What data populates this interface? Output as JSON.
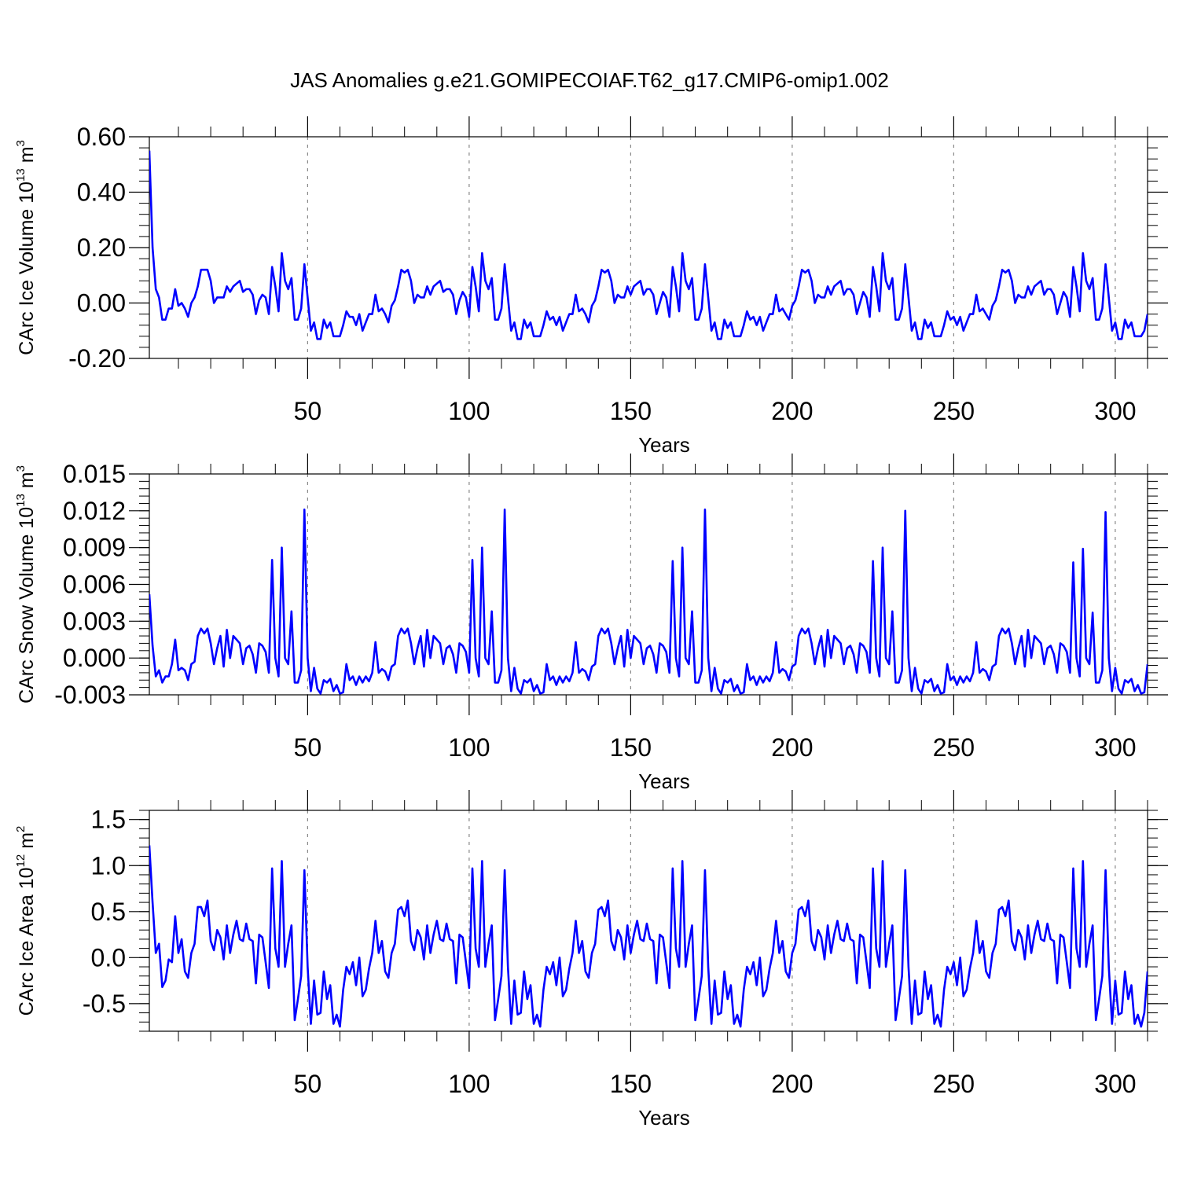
{
  "title": "JAS Anomalies g.e21.GOMIPECOIAF.T62_g17.CMIP6-omip1.002",
  "colors": {
    "line": "#0000ff",
    "axis": "#000000",
    "grid": "#888888"
  },
  "chart_data": [
    {
      "type": "line",
      "ylabel": {
        "text": "CArc Ice Volume 10",
        "exp": "13",
        "unit": " m",
        "unit_exp": "3"
      },
      "xlabel": "Years",
      "xlim": [
        1,
        310
      ],
      "ylim": [
        -0.2,
        0.6
      ],
      "xticks": [
        50,
        100,
        150,
        200,
        250,
        300
      ],
      "yticks": [
        "-0.20",
        "0.00",
        "0.20",
        "0.40",
        "0.60"
      ],
      "grid": "vertical dashed lines at x ticks",
      "series": [
        {
          "values": [
            0.55,
            0.2,
            0.05,
            0.02,
            -0.06,
            -0.06,
            -0.02,
            -0.02,
            0.05,
            -0.01,
            0.0,
            -0.02,
            -0.05,
            0.0,
            0.02,
            0.06,
            0.12,
            0.12,
            0.12,
            0.08,
            0.0,
            0.02,
            0.02,
            0.02,
            0.06,
            0.04,
            0.06,
            0.07,
            0.08,
            0.04,
            0.05,
            0.05,
            0.03,
            -0.04,
            0.01,
            0.03,
            0.02,
            -0.04,
            0.13,
            0.06,
            -0.03,
            0.18,
            0.08,
            0.05,
            0.09,
            -0.06,
            -0.06,
            -0.02,
            0.14,
            0.02,
            -0.1,
            -0.07,
            -0.13,
            -0.13,
            -0.06,
            -0.09,
            -0.07,
            -0.12,
            -0.12,
            -0.12,
            -0.08,
            -0.03,
            -0.05,
            -0.05,
            -0.08,
            -0.04,
            -0.1,
            -0.07,
            -0.04,
            -0.04,
            0.03,
            -0.03,
            -0.02,
            -0.04,
            -0.07,
            -0.01,
            0.01,
            0.06,
            0.12,
            0.11,
            0.12,
            0.08,
            0.0,
            0.03,
            0.02,
            0.02,
            0.06,
            0.03,
            0.06,
            0.07,
            0.08,
            0.04,
            0.05,
            0.05,
            0.03,
            -0.04,
            0.01,
            0.04,
            0.02,
            -0.05,
            0.13,
            0.06,
            -0.03,
            0.18,
            0.08,
            0.05,
            0.09,
            -0.06,
            -0.06,
            -0.02,
            0.14,
            0.02,
            -0.1,
            -0.07,
            -0.13,
            -0.13,
            -0.06,
            -0.09,
            -0.07,
            -0.12,
            -0.12,
            -0.12,
            -0.08,
            -0.03,
            -0.06,
            -0.05,
            -0.08,
            -0.05,
            -0.1,
            -0.07,
            -0.04,
            -0.04,
            0.03,
            -0.03,
            -0.02,
            -0.04,
            -0.07,
            -0.01,
            0.01,
            0.06,
            0.12,
            0.11,
            0.12,
            0.08,
            0.0,
            0.03,
            0.02,
            0.02,
            0.06,
            0.03,
            0.06,
            0.07,
            0.08,
            0.03,
            0.05,
            0.05,
            0.03,
            -0.04,
            0.0,
            0.04,
            0.02,
            -0.05,
            0.13,
            0.06,
            -0.03,
            0.18,
            0.08,
            0.05,
            0.09,
            -0.06,
            -0.06,
            -0.02,
            0.14,
            0.02,
            -0.1,
            -0.07,
            -0.13,
            -0.13,
            -0.06,
            -0.09,
            -0.07,
            -0.12,
            -0.12,
            -0.12,
            -0.08,
            -0.03,
            -0.06,
            -0.05,
            -0.08,
            -0.05,
            -0.1,
            -0.07,
            -0.04,
            -0.04,
            0.03,
            -0.03,
            -0.02,
            -0.04,
            -0.06,
            -0.01,
            0.01,
            0.06,
            0.12,
            0.11,
            0.12,
            0.08,
            0.0,
            0.03,
            0.02,
            0.02,
            0.06,
            0.03,
            0.06,
            0.07,
            0.08,
            0.03,
            0.05,
            0.05,
            0.03,
            -0.04,
            0.0,
            0.04,
            0.02,
            -0.05,
            0.13,
            0.06,
            -0.03,
            0.18,
            0.08,
            0.05,
            0.09,
            -0.06,
            -0.06,
            -0.02,
            0.14,
            0.02,
            -0.1,
            -0.07,
            -0.13,
            -0.13,
            -0.06,
            -0.09,
            -0.07,
            -0.12,
            -0.12,
            -0.12,
            -0.08,
            -0.03,
            -0.06,
            -0.05,
            -0.08,
            -0.05,
            -0.1,
            -0.07,
            -0.04,
            -0.04,
            0.03,
            -0.03,
            -0.02,
            -0.04,
            -0.06,
            -0.01,
            0.01,
            0.06,
            0.12,
            0.11,
            0.12,
            0.08,
            0.0,
            0.03,
            0.02,
            0.02,
            0.06,
            0.03,
            0.06,
            0.07,
            0.08,
            0.03,
            0.05,
            0.05,
            0.03,
            -0.04,
            0.0,
            0.04,
            0.02,
            -0.05,
            0.13,
            0.06,
            -0.03,
            0.18,
            0.08,
            0.05,
            0.09,
            -0.06,
            -0.06,
            -0.02,
            0.14,
            0.02,
            -0.1,
            -0.07,
            -0.13,
            -0.13,
            -0.06,
            -0.09,
            -0.07,
            -0.12,
            -0.12,
            -0.12,
            -0.1,
            -0.04
          ]
        }
      ]
    },
    {
      "type": "line",
      "ylabel": {
        "text": "CArc Snow Volume 10",
        "exp": "13",
        "unit": " m",
        "unit_exp": "3"
      },
      "xlabel": "Years",
      "xlim": [
        1,
        310
      ],
      "ylim": [
        -0.003,
        0.015
      ],
      "xticks": [
        50,
        100,
        150,
        200,
        250,
        300
      ],
      "yticks": [
        "-0.003",
        "0.000",
        "0.003",
        "0.006",
        "0.009",
        "0.012",
        "0.015"
      ],
      "grid": "vertical dashed lines at x ticks",
      "series": [
        {
          "values": [
            0.0052,
            0.001,
            -0.0015,
            -0.001,
            -0.002,
            -0.0015,
            -0.0015,
            -0.0005,
            0.0015,
            -0.001,
            -0.0008,
            -0.001,
            -0.0018,
            -0.0005,
            -0.0003,
            0.0018,
            0.0024,
            0.002,
            0.0024,
            0.0012,
            -0.0005,
            0.0008,
            0.0018,
            -0.0007,
            0.0023,
            0.0,
            0.0018,
            0.0015,
            0.0012,
            -0.0005,
            0.0008,
            0.001,
            0.0003,
            -0.0012,
            0.0012,
            0.001,
            0.0005,
            -0.0012,
            0.008,
            0.0,
            -0.0015,
            0.009,
            0.0,
            -0.0005,
            0.0038,
            -0.002,
            -0.002,
            -0.001,
            0.0121,
            0.0,
            -0.0027,
            -0.0008,
            -0.0025,
            -0.0029,
            -0.0018,
            -0.002,
            -0.0017,
            -0.0027,
            -0.0022,
            -0.0029,
            -0.0028,
            -0.0005,
            -0.0018,
            -0.0015,
            -0.0022,
            -0.0015,
            -0.002,
            -0.0015,
            -0.0019,
            -0.0012,
            0.0013,
            -0.0012,
            -0.0009,
            -0.0011,
            -0.0018,
            -0.0007,
            -0.0005,
            0.0018,
            0.0024,
            0.002,
            0.0024,
            0.0012,
            -0.0005,
            0.0008,
            0.0018,
            -0.0007,
            0.0023,
            0.0,
            0.0018,
            0.0015,
            0.0012,
            -0.0005,
            0.0008,
            0.001,
            0.0003,
            -0.0012,
            0.0012,
            0.001,
            0.0005,
            -0.0012,
            0.008,
            0.0,
            -0.0015,
            0.009,
            0.0,
            -0.0005,
            0.0038,
            -0.002,
            -0.002,
            -0.001,
            0.0121,
            0.0,
            -0.0027,
            -0.0008,
            -0.0025,
            -0.0029,
            -0.0018,
            -0.002,
            -0.0017,
            -0.0027,
            -0.0022,
            -0.0029,
            -0.0028,
            -0.0005,
            -0.0018,
            -0.0015,
            -0.0022,
            -0.0015,
            -0.002,
            -0.0015,
            -0.0019,
            -0.0012,
            0.0013,
            -0.0012,
            -0.0009,
            -0.0011,
            -0.0018,
            -0.0007,
            -0.0005,
            0.0018,
            0.0024,
            0.002,
            0.0024,
            0.0012,
            -0.0005,
            0.0008,
            0.0018,
            -0.0007,
            0.0023,
            0.0,
            0.0018,
            0.0015,
            0.0012,
            -0.0005,
            0.0008,
            0.001,
            0.0003,
            -0.0012,
            0.0012,
            0.001,
            0.0005,
            -0.0012,
            0.0079,
            0.0,
            -0.0015,
            0.009,
            0.0,
            -0.0005,
            0.0038,
            -0.002,
            -0.002,
            -0.001,
            0.0121,
            0.0,
            -0.0027,
            -0.0008,
            -0.0025,
            -0.0029,
            -0.0018,
            -0.002,
            -0.0017,
            -0.0027,
            -0.0022,
            -0.0029,
            -0.0028,
            -0.0005,
            -0.0018,
            -0.0015,
            -0.0022,
            -0.0015,
            -0.002,
            -0.0015,
            -0.0019,
            -0.0012,
            0.0013,
            -0.0012,
            -0.0009,
            -0.0011,
            -0.0018,
            -0.0007,
            -0.0005,
            0.0018,
            0.0024,
            0.002,
            0.0024,
            0.0012,
            -0.0005,
            0.0008,
            0.0018,
            -0.0007,
            0.0023,
            0.0,
            0.0018,
            0.0015,
            0.0012,
            -0.0005,
            0.0008,
            0.001,
            0.0003,
            -0.0012,
            0.0012,
            0.001,
            0.0005,
            -0.0012,
            0.0079,
            0.0,
            -0.0015,
            0.009,
            0.0,
            -0.0005,
            0.0038,
            -0.002,
            -0.002,
            -0.001,
            0.012,
            0.0,
            -0.0027,
            -0.0008,
            -0.0025,
            -0.0029,
            -0.0018,
            -0.002,
            -0.0017,
            -0.0027,
            -0.0022,
            -0.0029,
            -0.0028,
            -0.0005,
            -0.0018,
            -0.0015,
            -0.0022,
            -0.0015,
            -0.002,
            -0.0015,
            -0.0019,
            -0.0012,
            0.0013,
            -0.0012,
            -0.0009,
            -0.0011,
            -0.0018,
            -0.0007,
            -0.0005,
            0.0018,
            0.0024,
            0.002,
            0.0024,
            0.0012,
            -0.0005,
            0.0008,
            0.0018,
            -0.0007,
            0.0023,
            0.0,
            0.0018,
            0.0015,
            0.0012,
            -0.0005,
            0.0008,
            0.001,
            0.0003,
            -0.0012,
            0.0012,
            0.001,
            0.0005,
            -0.0012,
            0.0078,
            0.0,
            -0.0015,
            0.0089,
            0.0,
            -0.0005,
            0.0037,
            -0.002,
            -0.002,
            -0.001,
            0.0119,
            0.0,
            -0.0027,
            -0.0008,
            -0.0025,
            -0.0029,
            -0.0018,
            -0.002,
            -0.0017,
            -0.0027,
            -0.0022,
            -0.0029,
            -0.0028,
            -0.0005
          ]
        }
      ]
    },
    {
      "type": "line",
      "ylabel": {
        "text": "CArc Ice Area 10",
        "exp": "12",
        "unit": " m",
        "unit_exp": "2"
      },
      "xlabel": "Years",
      "xlim": [
        1,
        310
      ],
      "ylim": [
        -0.8,
        1.6
      ],
      "xticks": [
        50,
        100,
        150,
        200,
        250,
        300
      ],
      "yticks": [
        "-0.5",
        "0.0",
        "0.5",
        "1.0",
        "1.5"
      ],
      "grid": "vertical dashed lines at x ticks",
      "series": [
        {
          "values": [
            1.22,
            0.6,
            0.05,
            0.15,
            -0.32,
            -0.25,
            -0.02,
            -0.05,
            0.45,
            0.05,
            0.2,
            -0.15,
            -0.22,
            0.05,
            0.15,
            0.55,
            0.55,
            0.45,
            0.62,
            0.18,
            0.08,
            0.3,
            0.22,
            -0.02,
            0.35,
            0.05,
            0.25,
            0.4,
            0.2,
            0.18,
            0.37,
            0.2,
            0.18,
            -0.28,
            0.25,
            0.22,
            -0.05,
            -0.33,
            0.97,
            0.1,
            -0.1,
            1.05,
            -0.1,
            0.15,
            0.35,
            -0.68,
            -0.45,
            -0.2,
            0.95,
            -0.1,
            -0.72,
            -0.25,
            -0.62,
            -0.6,
            -0.15,
            -0.45,
            -0.3,
            -0.72,
            -0.62,
            -0.75,
            -0.35,
            -0.1,
            -0.18,
            -0.05,
            -0.3,
            0.0,
            -0.42,
            -0.35,
            -0.12,
            0.05,
            0.4,
            0.05,
            0.18,
            -0.15,
            -0.22,
            0.05,
            0.15,
            0.52,
            0.55,
            0.45,
            0.62,
            0.18,
            0.08,
            0.3,
            0.22,
            -0.02,
            0.35,
            0.05,
            0.25,
            0.4,
            0.2,
            0.18,
            0.37,
            0.2,
            0.18,
            -0.28,
            0.25,
            0.22,
            -0.05,
            -0.33,
            0.97,
            0.1,
            -0.1,
            1.05,
            -0.1,
            0.15,
            0.35,
            -0.68,
            -0.45,
            -0.2,
            0.95,
            -0.1,
            -0.72,
            -0.25,
            -0.62,
            -0.6,
            -0.15,
            -0.45,
            -0.3,
            -0.72,
            -0.62,
            -0.75,
            -0.35,
            -0.1,
            -0.18,
            -0.05,
            -0.3,
            0.0,
            -0.42,
            -0.35,
            -0.12,
            0.05,
            0.4,
            0.05,
            0.18,
            -0.15,
            -0.22,
            0.05,
            0.15,
            0.52,
            0.55,
            0.45,
            0.62,
            0.18,
            0.08,
            0.3,
            0.22,
            -0.02,
            0.35,
            0.05,
            0.25,
            0.4,
            0.2,
            0.18,
            0.37,
            0.2,
            0.18,
            -0.28,
            0.25,
            0.22,
            -0.05,
            -0.33,
            0.97,
            0.1,
            -0.1,
            1.05,
            -0.1,
            0.15,
            0.35,
            -0.68,
            -0.45,
            -0.2,
            0.95,
            -0.1,
            -0.72,
            -0.25,
            -0.62,
            -0.6,
            -0.15,
            -0.45,
            -0.3,
            -0.72,
            -0.62,
            -0.75,
            -0.35,
            -0.1,
            -0.18,
            -0.05,
            -0.3,
            0.0,
            -0.42,
            -0.35,
            -0.12,
            0.05,
            0.4,
            0.05,
            0.18,
            -0.15,
            -0.22,
            0.05,
            0.15,
            0.52,
            0.55,
            0.45,
            0.62,
            0.18,
            0.08,
            0.3,
            0.22,
            -0.02,
            0.35,
            0.05,
            0.25,
            0.4,
            0.2,
            0.18,
            0.37,
            0.2,
            0.18,
            -0.28,
            0.25,
            0.22,
            -0.05,
            -0.33,
            0.97,
            0.1,
            -0.1,
            1.05,
            -0.1,
            0.15,
            0.35,
            -0.68,
            -0.45,
            -0.2,
            0.95,
            -0.1,
            -0.72,
            -0.25,
            -0.62,
            -0.6,
            -0.15,
            -0.45,
            -0.3,
            -0.72,
            -0.62,
            -0.75,
            -0.35,
            -0.1,
            -0.18,
            -0.05,
            -0.3,
            0.0,
            -0.42,
            -0.35,
            -0.12,
            0.05,
            0.4,
            0.05,
            0.18,
            -0.15,
            -0.22,
            0.05,
            0.15,
            0.52,
            0.55,
            0.45,
            0.62,
            0.18,
            0.08,
            0.3,
            0.22,
            -0.02,
            0.35,
            0.05,
            0.25,
            0.4,
            0.2,
            0.18,
            0.37,
            0.2,
            0.18,
            -0.28,
            0.25,
            0.22,
            -0.05,
            -0.33,
            0.97,
            0.1,
            -0.1,
            1.05,
            -0.1,
            0.15,
            0.35,
            -0.68,
            -0.45,
            -0.2,
            0.95,
            -0.1,
            -0.72,
            -0.25,
            -0.62,
            -0.6,
            -0.15,
            -0.45,
            -0.3,
            -0.72,
            -0.62,
            -0.75,
            -0.6,
            -0.15
          ]
        }
      ]
    }
  ]
}
